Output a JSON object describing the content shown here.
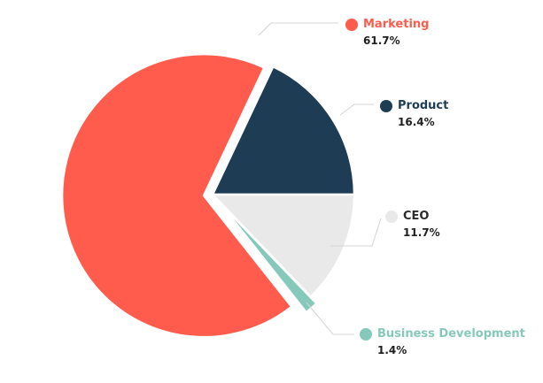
{
  "chart_data": {
    "type": "pie",
    "title": "",
    "start_angle_deg": 0,
    "direction": "counterclockwise",
    "slices": [
      {
        "label": "Product",
        "value": 16.4,
        "value_label": "16.4%",
        "color": "#1e3d54",
        "exploded": false
      },
      {
        "label": "Marketing",
        "value": 61.7,
        "value_label": "61.7%",
        "color": "#ff5c4d",
        "exploded": true
      },
      {
        "label": "Business Development",
        "value": 1.4,
        "value_label": "1.4%",
        "color": "#86c9bb",
        "exploded": true
      },
      {
        "label": "CEO",
        "value": 11.7,
        "value_label": "11.7%",
        "color": "#e8e9e8",
        "exploded": false
      }
    ]
  },
  "colors": {
    "label_marketing": "#ff5c4d",
    "label_product": "#1e3d54",
    "label_ceo": "#2b2b2b",
    "label_business_development": "#86c9bb"
  }
}
